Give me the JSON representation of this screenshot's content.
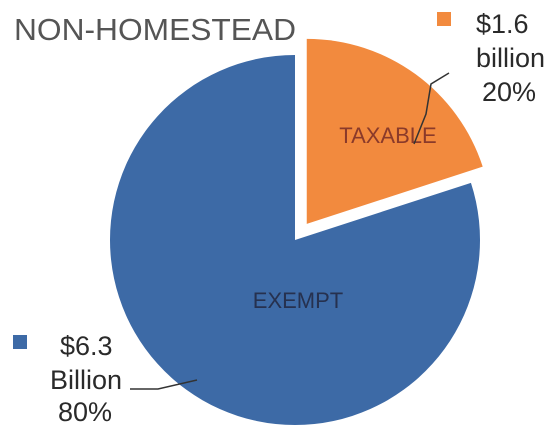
{
  "chart_data": {
    "type": "pie",
    "title": "NON-HOMESTEAD",
    "slices": [
      {
        "label": "TAXABLE",
        "amount": "$1.6",
        "unit": "billion",
        "percent_label": "20%",
        "value": 20,
        "color": "#f28a3e",
        "label_color": "#8a3a2a",
        "exploded": true
      },
      {
        "label": "EXEMPT",
        "amount": "$6.3",
        "unit": "Billion",
        "percent_label": "80%",
        "value": 80,
        "color": "#3d6aa6",
        "label_color": "#26314f",
        "exploded": false
      }
    ]
  }
}
